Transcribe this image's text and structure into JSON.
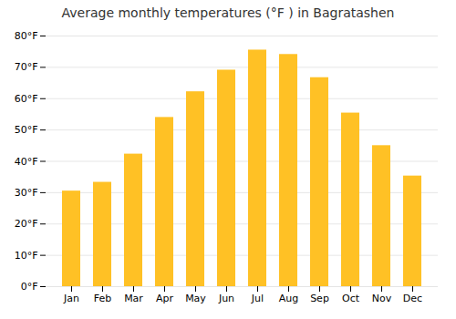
{
  "chart_data": {
    "type": "bar",
    "title": "Average monthly temperatures (°F ) in Bagratashen",
    "categories": [
      "Jan",
      "Feb",
      "Mar",
      "Apr",
      "May",
      "Jun",
      "Jul",
      "Aug",
      "Sep",
      "Oct",
      "Nov",
      "Dec"
    ],
    "values": [
      30.5,
      33.3,
      42.3,
      54.0,
      62.2,
      69.1,
      75.5,
      74.1,
      66.7,
      55.4,
      45.0,
      35.3
    ],
    "color": "#FFC125",
    "ylim": [
      0,
      80
    ],
    "yticks": [
      {
        "value": 0,
        "label": "0°F"
      },
      {
        "value": 10,
        "label": "10°F"
      },
      {
        "value": 20,
        "label": "20°F"
      },
      {
        "value": 30,
        "label": "30°F"
      },
      {
        "value": 40,
        "label": "40°F"
      },
      {
        "value": 50,
        "label": "50°F"
      },
      {
        "value": 60,
        "label": "60°F"
      },
      {
        "value": 70,
        "label": "70°F"
      },
      {
        "value": 80,
        "label": "80°F"
      }
    ],
    "grid": true
  }
}
